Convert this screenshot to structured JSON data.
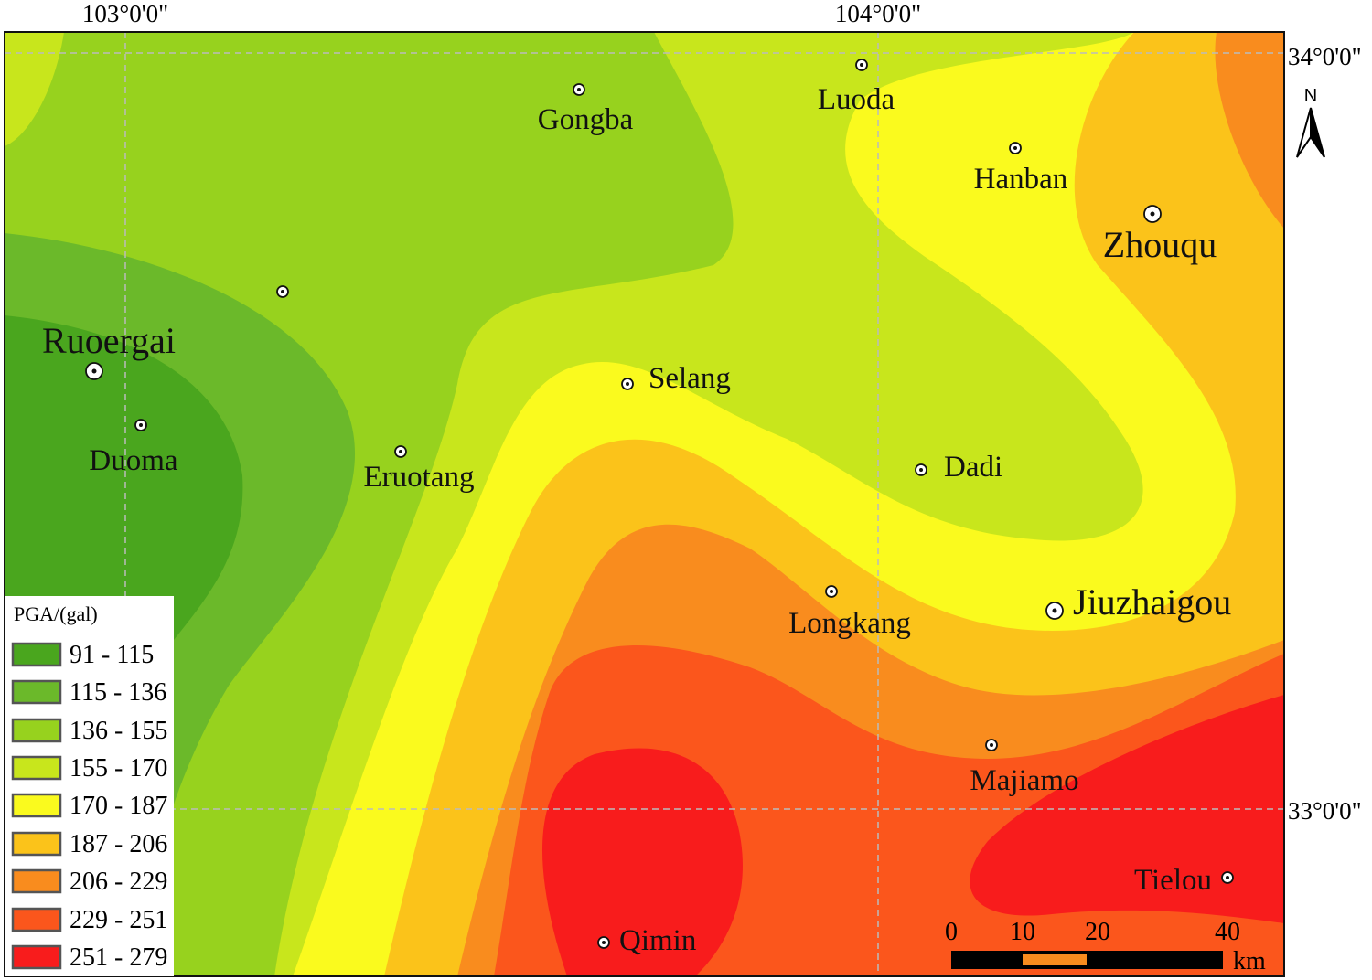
{
  "graticule": {
    "top_labels": [
      "103°0'0\"",
      "104°0'0\""
    ],
    "right_labels": [
      "34°0'0\"",
      "33°0'0\""
    ]
  },
  "places": [
    "Gongba",
    "Luoda",
    "Hanban",
    "Zhouqu",
    "Ruoergai",
    "Duoma",
    "Eruotang",
    "Selang",
    "Dadi",
    "Longkang",
    "Jiuzhaigou",
    "Majiamo",
    "Tielou",
    "Qimin"
  ],
  "legend": {
    "title": "PGA/(gal)",
    "classes": [
      "91 - 115",
      "115 - 136",
      "136 - 155",
      "155 - 170",
      "170 - 187",
      "187 - 206",
      "206 - 229",
      "229 - 251",
      "251 - 279"
    ]
  },
  "scale_bar": {
    "ticks": [
      "0",
      "10",
      "20",
      "40"
    ],
    "unit": "km"
  },
  "north_arrow": "N"
}
